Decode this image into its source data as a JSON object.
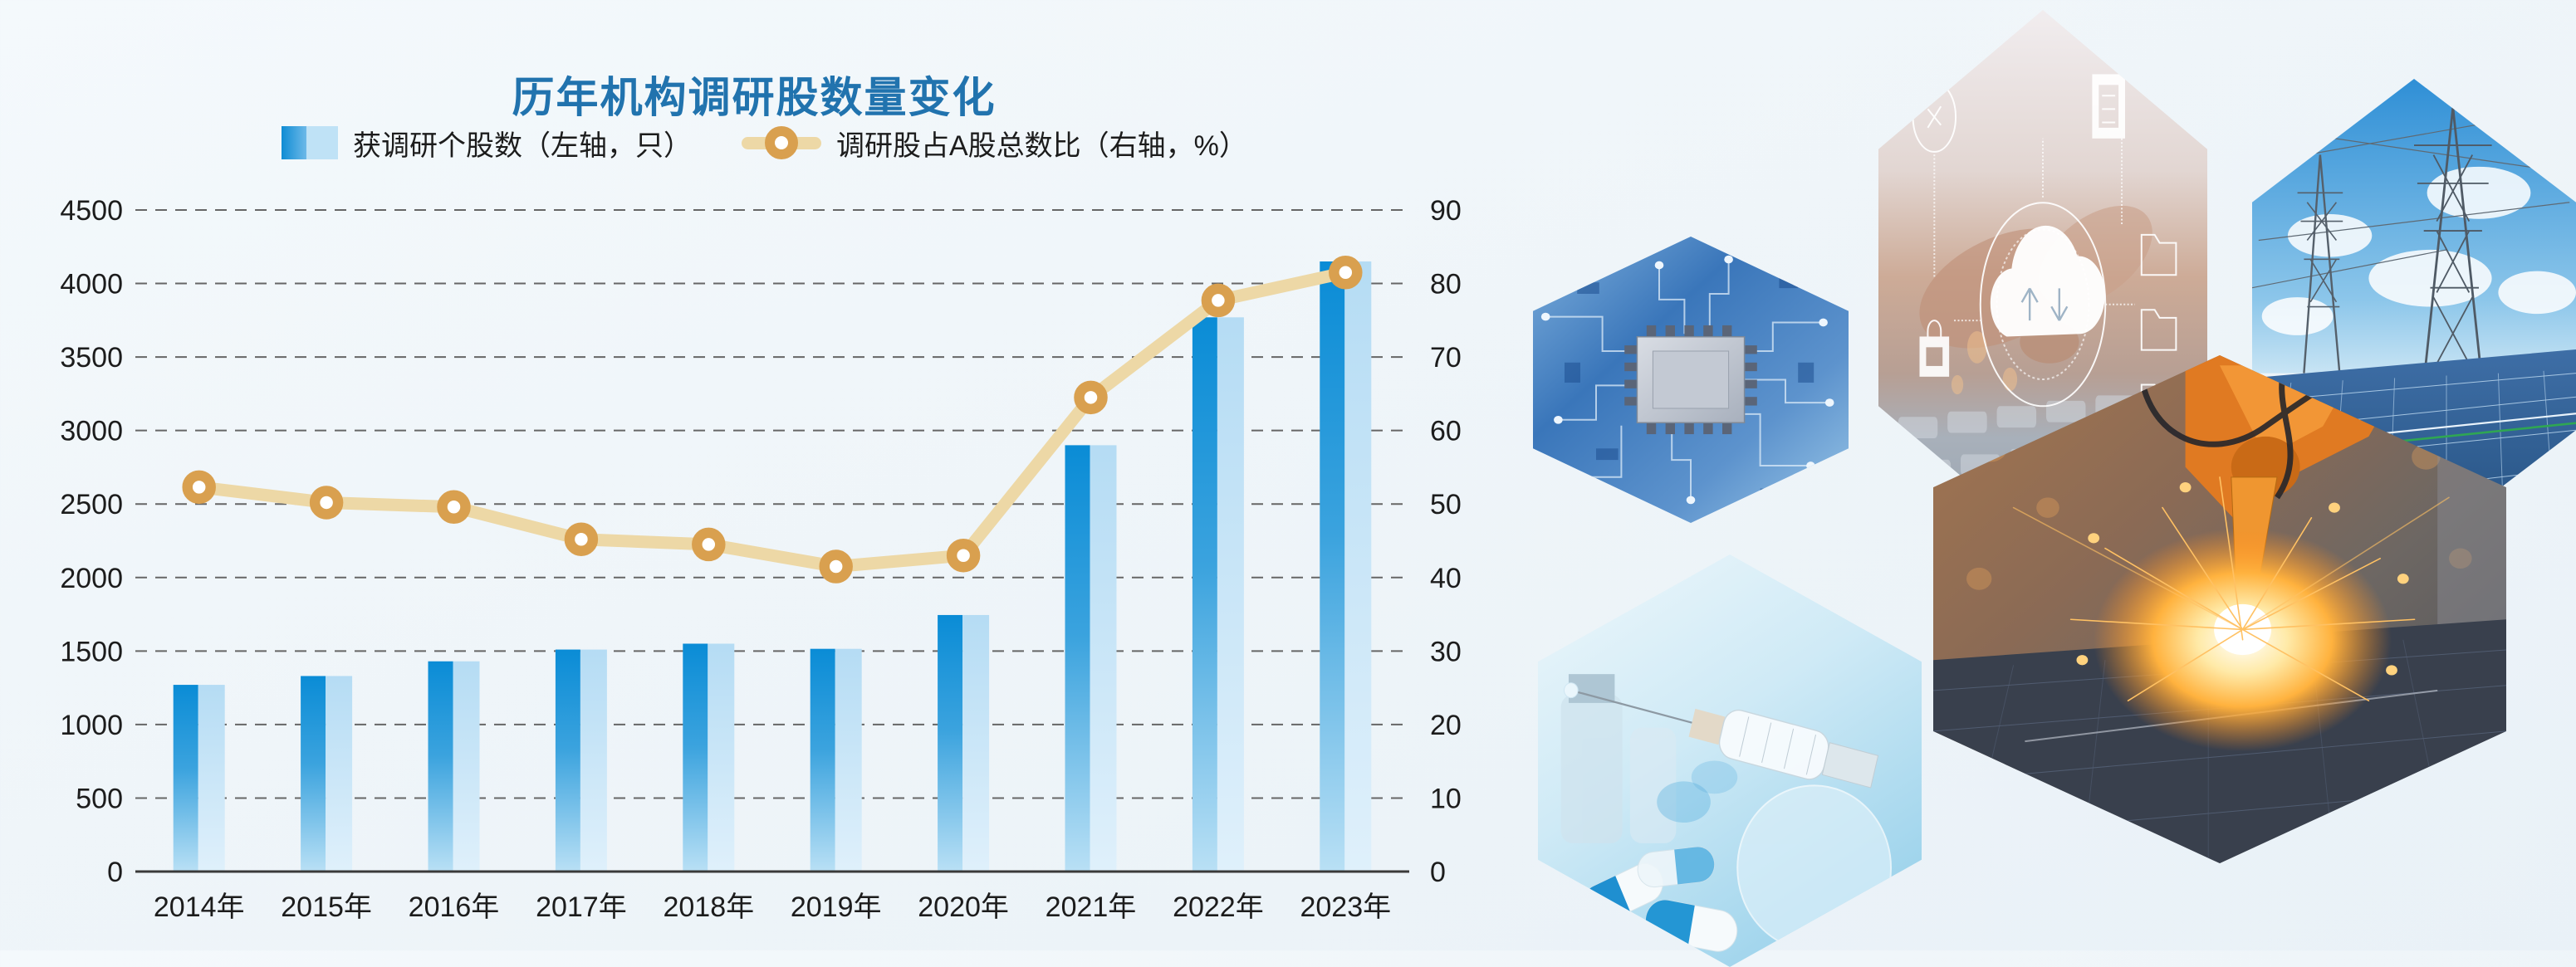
{
  "chart": {
    "title": "历年机构调研股数量变化",
    "legend": {
      "bars_label": "获调研个股数（左轴，只）",
      "line_label": "调研股占A股总数比（右轴，%）"
    }
  },
  "chart_data": {
    "type": "bar",
    "subtype": "bar+line dual-axis combo",
    "title": "历年机构调研股数量变化",
    "categories": [
      "2014年",
      "2015年",
      "2016年",
      "2017年",
      "2018年",
      "2019年",
      "2020年",
      "2021年",
      "2022年",
      "2023年"
    ],
    "series": [
      {
        "name": "获调研个股数（左轴，只）",
        "type": "bar",
        "axis": "left",
        "values": [
          1270,
          1330,
          1430,
          1510,
          1550,
          1515,
          1745,
          2900,
          3770,
          4150
        ]
      },
      {
        "name": "调研股占A股总数比（右轴，%）",
        "type": "line",
        "axis": "right",
        "values": [
          52.3,
          50.2,
          49.6,
          45.2,
          44.5,
          41.5,
          43.0,
          64.5,
          77.7,
          81.5
        ]
      }
    ],
    "left_axis": {
      "min": 0,
      "max": 4500,
      "step": 500,
      "ticks": [
        "4500",
        "4000",
        "3500",
        "3000",
        "2500",
        "2000",
        "1500",
        "1000",
        "500",
        "0"
      ]
    },
    "right_axis": {
      "min": 0,
      "max": 90,
      "step": 10,
      "ticks": [
        "90",
        "80",
        "70",
        "60",
        "50",
        "40",
        "30",
        "20",
        "10",
        "0"
      ]
    },
    "grid": "horizontal dashed gridlines",
    "legend_position": "top"
  },
  "colors": {
    "title": "#2173ae",
    "bar_dark_top": "#0a8cd6",
    "bar_dark_mid": "#3ba3de",
    "bar_dark_bottom": "#b9e0f5",
    "bar_light_top": "#b5dcf4",
    "bar_light_bottom": "#dff0fb",
    "line": "#edd8a6",
    "marker_ring": "#d9a04f",
    "marker_hole": "#ffffff",
    "grid": "#666666",
    "axis": "#3a3a3a",
    "text": "#1c1c1c",
    "background": "#f0f5f9"
  },
  "hexagons": [
    {
      "name": "circuit-chip",
      "theme": "blue circuit board with CPU chip"
    },
    {
      "name": "cloud-computing",
      "theme": "hands typing on laptop with cloud data overlay"
    },
    {
      "name": "power-grid-solar",
      "theme": "electricity pylons above solar panels"
    },
    {
      "name": "pharmaceutical",
      "theme": "syringe and blue-white capsules"
    },
    {
      "name": "robot-welding",
      "theme": "orange industrial robot arm welding with sparks"
    }
  ]
}
